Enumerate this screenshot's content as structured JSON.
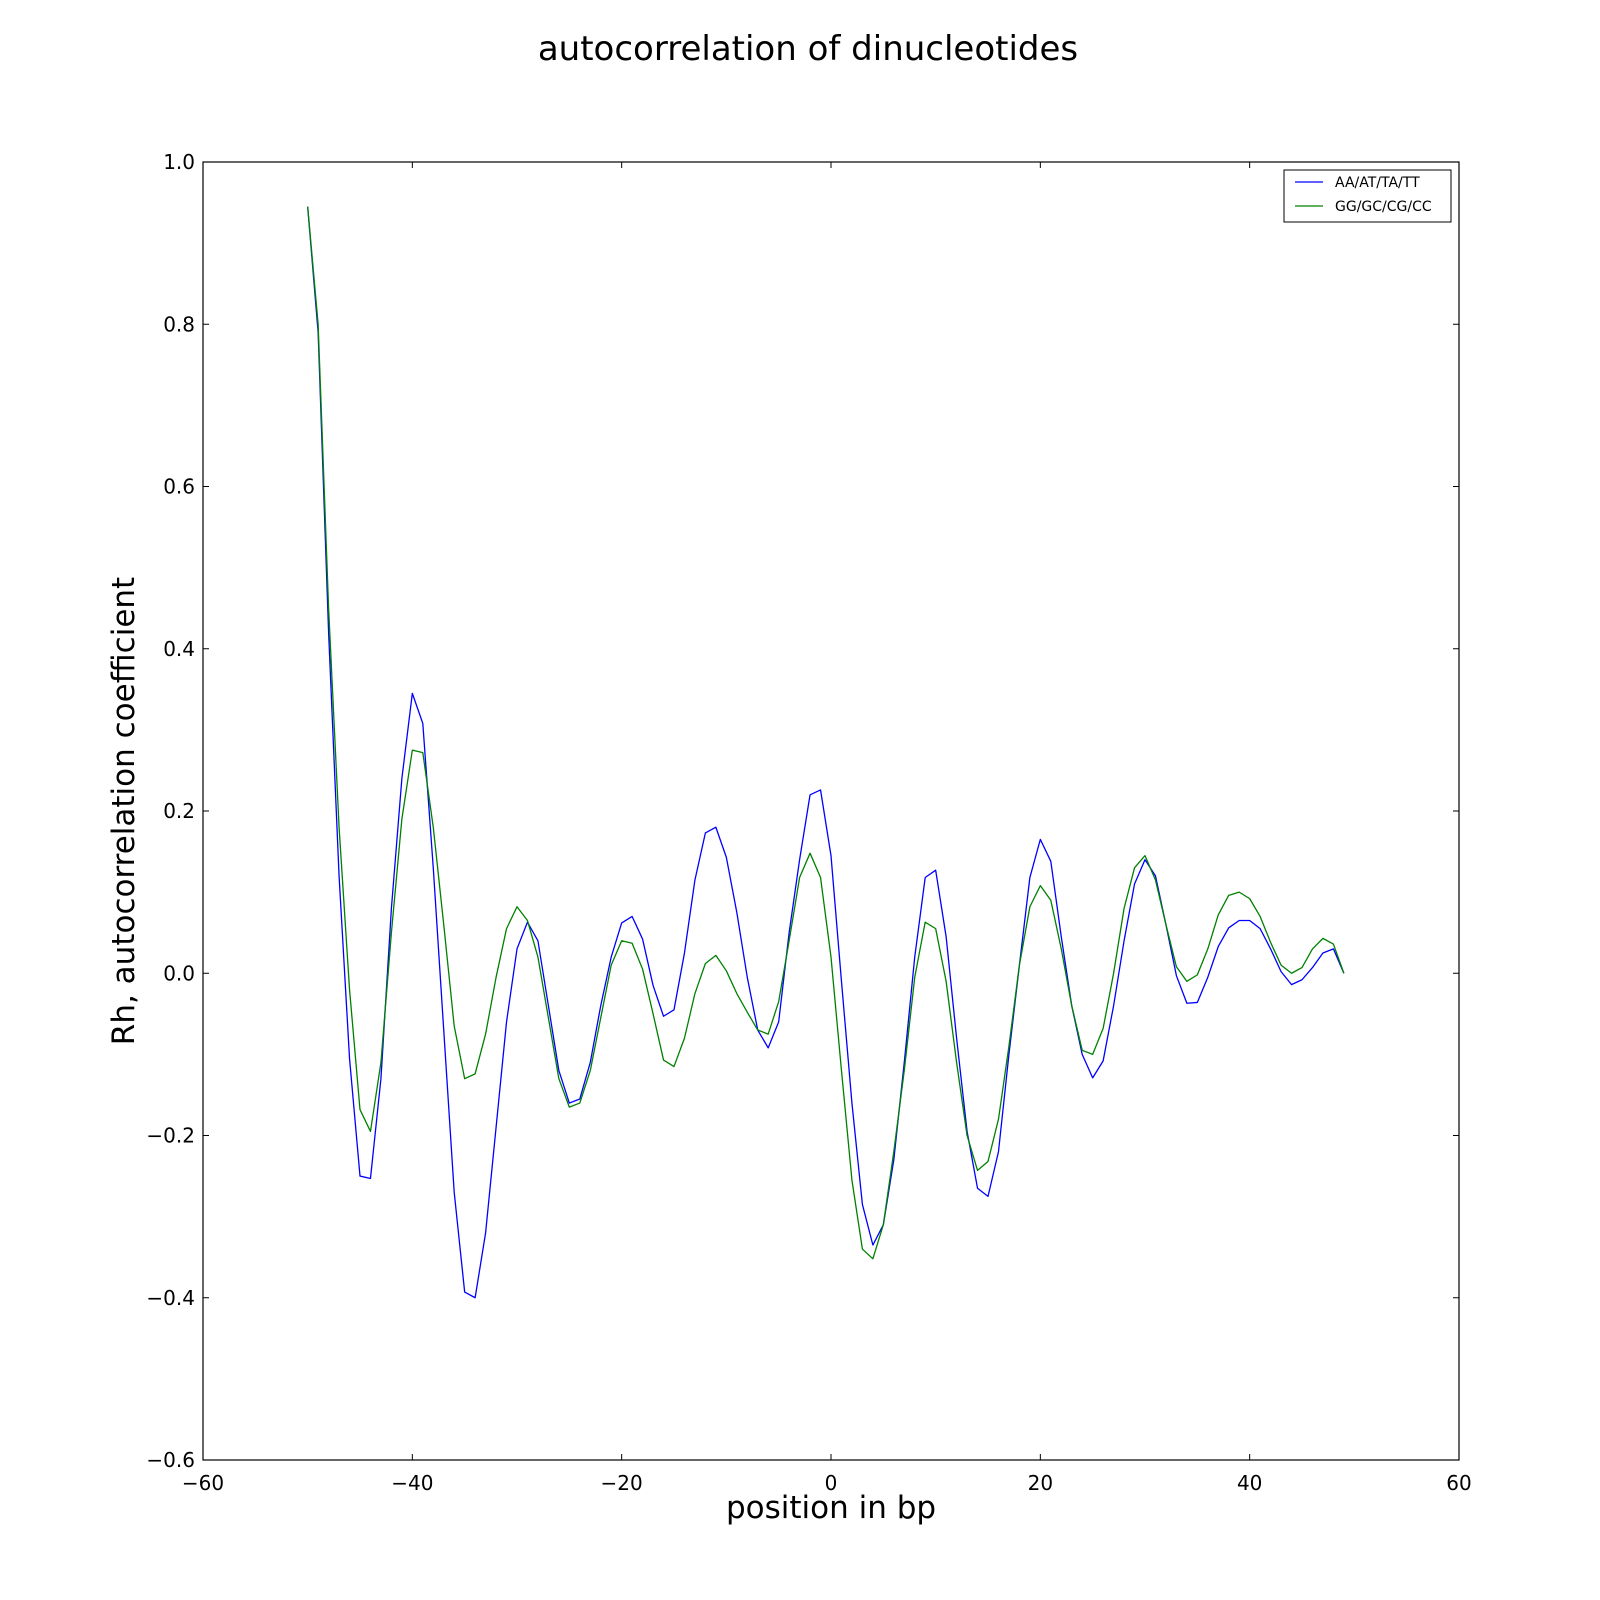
{
  "chart_data": {
    "type": "line",
    "title": "autocorrelation of dinucleotides",
    "xlabel": "position in bp",
    "ylabel": "Rh, autocorrelation coefficient",
    "xlim": [
      -60,
      60
    ],
    "ylim": [
      -0.6,
      1.0
    ],
    "xticks": [
      -60,
      -40,
      -20,
      0,
      20,
      40,
      60
    ],
    "xtick_labels": [
      "−60",
      "−40",
      "−20",
      "0",
      "20",
      "40",
      "60"
    ],
    "yticks": [
      -0.6,
      -0.4,
      -0.2,
      0.0,
      0.2,
      0.4,
      0.6,
      0.8,
      1.0
    ],
    "ytick_labels": [
      "−0.6",
      "−0.4",
      "−0.2",
      "0.0",
      "0.2",
      "0.4",
      "0.6",
      "0.8",
      "1.0"
    ],
    "grid": false,
    "legend_position": "top-right",
    "x_start": -50,
    "series": [
      {
        "name": "AA/AT/TA/TT",
        "color": "#0000ff",
        "values": [
          0.945,
          0.79,
          0.42,
          0.12,
          -0.105,
          -0.25,
          -0.253,
          -0.13,
          0.08,
          0.24,
          0.345,
          0.308,
          0.13,
          -0.07,
          -0.27,
          -0.393,
          -0.4,
          -0.32,
          -0.19,
          -0.06,
          0.03,
          0.063,
          0.04,
          -0.04,
          -0.12,
          -0.16,
          -0.155,
          -0.11,
          -0.04,
          0.02,
          0.062,
          0.07,
          0.042,
          -0.015,
          -0.053,
          -0.045,
          0.025,
          0.115,
          0.173,
          0.18,
          0.143,
          0.075,
          -0.005,
          -0.07,
          -0.092,
          -0.06,
          0.05,
          0.14,
          0.22,
          0.226,
          0.145,
          -0.01,
          -0.16,
          -0.285,
          -0.335,
          -0.31,
          -0.23,
          -0.11,
          0.02,
          0.118,
          0.127,
          0.045,
          -0.08,
          -0.195,
          -0.265,
          -0.275,
          -0.22,
          -0.1,
          0.01,
          0.118,
          0.165,
          0.138,
          0.045,
          -0.04,
          -0.1,
          -0.129,
          -0.108,
          -0.04,
          0.04,
          0.11,
          0.14,
          0.12,
          0.06,
          -0.003,
          -0.037,
          -0.036,
          -0.005,
          0.033,
          0.056,
          0.065,
          0.065,
          0.055,
          0.03,
          0.002,
          -0.014,
          -0.008,
          0.007,
          0.025,
          0.03,
          0.0
        ]
      },
      {
        "name": "GG/GC/CG/CC",
        "color": "#008000",
        "values": [
          0.945,
          0.8,
          0.45,
          0.18,
          -0.02,
          -0.168,
          -0.195,
          -0.11,
          0.05,
          0.19,
          0.275,
          0.272,
          0.18,
          0.06,
          -0.065,
          -0.13,
          -0.124,
          -0.075,
          -0.005,
          0.055,
          0.082,
          0.065,
          0.02,
          -0.055,
          -0.13,
          -0.165,
          -0.16,
          -0.12,
          -0.055,
          0.01,
          0.04,
          0.037,
          0.005,
          -0.05,
          -0.107,
          -0.115,
          -0.08,
          -0.025,
          0.012,
          0.022,
          0.003,
          -0.025,
          -0.048,
          -0.07,
          -0.075,
          -0.035,
          0.04,
          0.118,
          0.148,
          0.118,
          0.02,
          -0.12,
          -0.255,
          -0.34,
          -0.352,
          -0.31,
          -0.22,
          -0.12,
          -0.005,
          0.063,
          0.055,
          -0.01,
          -0.11,
          -0.2,
          -0.243,
          -0.232,
          -0.18,
          -0.09,
          0.01,
          0.082,
          0.108,
          0.09,
          0.03,
          -0.04,
          -0.095,
          -0.1,
          -0.068,
          0.0,
          0.08,
          0.13,
          0.145,
          0.115,
          0.06,
          0.008,
          -0.01,
          -0.002,
          0.03,
          0.072,
          0.096,
          0.1,
          0.092,
          0.07,
          0.038,
          0.01,
          0.0,
          0.007,
          0.03,
          0.043,
          0.036,
          0.0
        ]
      }
    ]
  }
}
